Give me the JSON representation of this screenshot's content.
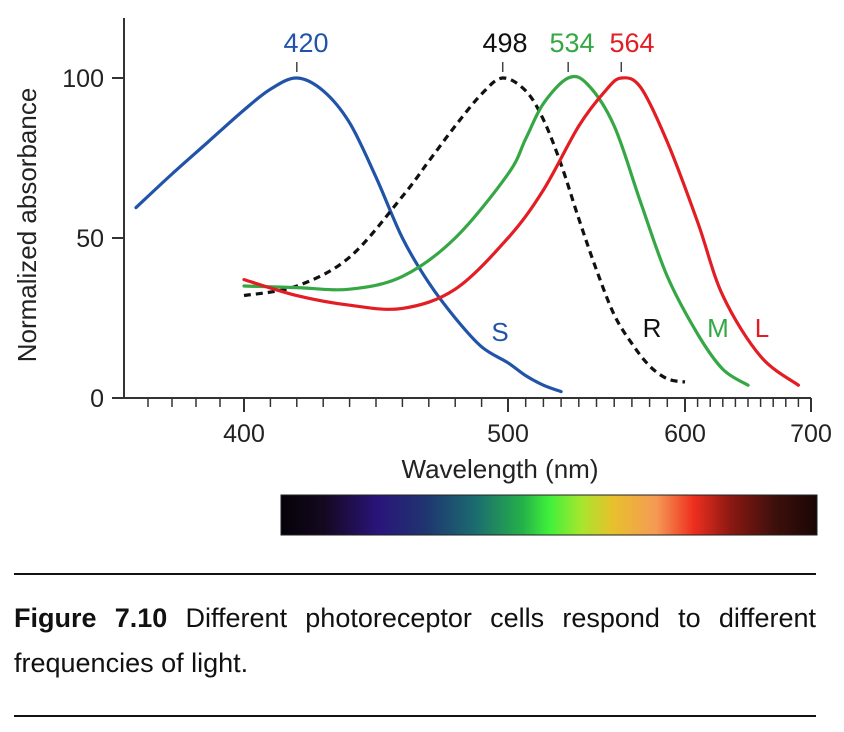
{
  "chart_data": {
    "type": "line",
    "title": "",
    "xlabel": "Wavelength (nm)",
    "ylabel": "Normalized absorbance",
    "yticks": [
      {
        "value": 0,
        "label": "0"
      },
      {
        "value": 50,
        "label": "50"
      },
      {
        "value": 100,
        "label": "100"
      }
    ],
    "xticks": [
      {
        "value": 400,
        "label": "400"
      },
      {
        "value": 500,
        "label": "500"
      },
      {
        "value": 600,
        "label": "600"
      },
      {
        "value": 700,
        "label": "700"
      }
    ],
    "ylim": [
      0,
      120
    ],
    "scale_note": "x axis is nonlinear (approximately reciprocal / wavenumber scale)",
    "series": [
      {
        "name": "S",
        "peak_label": "420",
        "color": "#2154a8",
        "dashed": false,
        "x": [
          355,
          370,
          385,
          400,
          410,
          420,
          430,
          440,
          450,
          460,
          470,
          480,
          490,
          500,
          510,
          520,
          530
        ],
        "y": [
          59.5,
          70,
          80,
          90,
          96.5,
          100,
          96,
          86,
          69,
          50,
          36,
          25,
          16,
          11,
          7,
          4,
          2
        ]
      },
      {
        "name": "R",
        "peak_label": "498",
        "color": "#111111",
        "dashed": true,
        "x": [
          400,
          420,
          440,
          460,
          470,
          480,
          490,
          498,
          510,
          520,
          530,
          540,
          550,
          560,
          570,
          580,
          590,
          600
        ],
        "y": [
          32,
          35,
          44,
          63,
          74,
          85,
          95,
          100,
          96,
          87,
          73,
          56,
          40,
          26,
          17,
          10,
          6,
          5
        ]
      },
      {
        "name": "M",
        "peak_label": "534",
        "color": "#35a745",
        "dashed": false,
        "x": [
          400,
          420,
          440,
          460,
          480,
          500,
          510,
          520,
          534,
          545,
          560,
          575,
          590,
          610,
          630,
          650
        ],
        "y": [
          35,
          34.5,
          34,
          38,
          50,
          70,
          81,
          92,
          100,
          98,
          85,
          61,
          38,
          20,
          9,
          4
        ]
      },
      {
        "name": "L",
        "peak_label": "564",
        "color": "#e21d23",
        "dashed": false,
        "x": [
          400,
          420,
          440,
          460,
          480,
          500,
          520,
          540,
          555,
          564,
          575,
          590,
          610,
          630,
          660,
          690
        ],
        "y": [
          37,
          32,
          29,
          28,
          34,
          50,
          65,
          85,
          96,
          100,
          97,
          80,
          55,
          32,
          13,
          4
        ]
      }
    ],
    "spectrum_bar": true,
    "grid": false,
    "legend": "none (curves labeled directly)"
  },
  "caption": {
    "label": "Figure 7.10",
    "text": "Different photoreceptor cells respond to different frequencies of light."
  }
}
